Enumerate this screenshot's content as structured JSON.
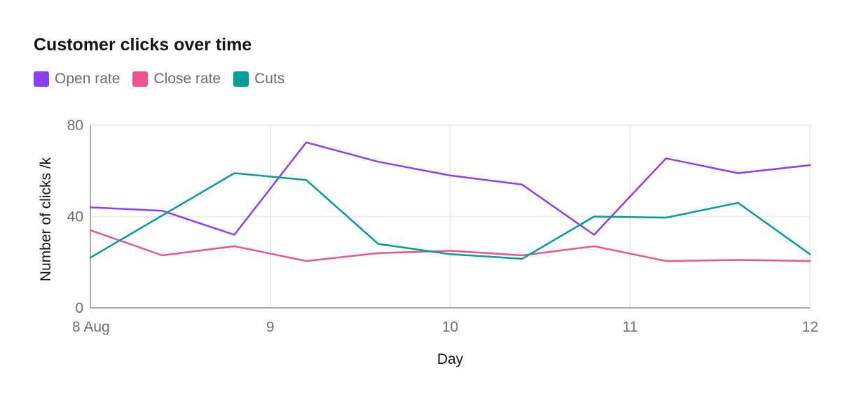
{
  "chart_data": {
    "type": "line",
    "title": "Customer clicks over time",
    "xlabel": "Day",
    "ylabel": "Number of clicks /k",
    "x_ticks": [
      "8 Aug",
      "9",
      "10",
      "11",
      "12"
    ],
    "y_ticks": [
      "0",
      "40",
      "80"
    ],
    "ylim": [
      0,
      80
    ],
    "x": [
      "2022-08-08T00:00",
      "2022-08-08T09:36",
      "2022-08-08T19:12",
      "2022-08-09T04:48",
      "2022-08-09T14:24",
      "2022-08-10T00:00",
      "2022-08-10T09:36",
      "2022-08-10T19:12",
      "2022-08-11T04:48",
      "2022-08-11T14:24",
      "2022-08-12T00:00"
    ],
    "series": [
      {
        "name": "Open rate",
        "color": "#8a3ffc",
        "values": [
          44,
          42.5,
          32,
          72.5,
          64,
          58,
          54,
          32,
          65.5,
          59,
          62.5
        ]
      },
      {
        "name": "Close rate",
        "color": "#ee538b",
        "values": [
          34,
          23,
          27,
          20.5,
          24,
          25,
          23,
          27,
          20.5,
          21,
          20.5
        ]
      },
      {
        "name": "Cuts",
        "color": "#009d9a",
        "values": [
          22,
          40.5,
          59,
          56,
          28,
          23.5,
          21.5,
          40,
          39.5,
          46,
          23.5
        ]
      }
    ],
    "grid": true,
    "legend_position": "top-left"
  }
}
